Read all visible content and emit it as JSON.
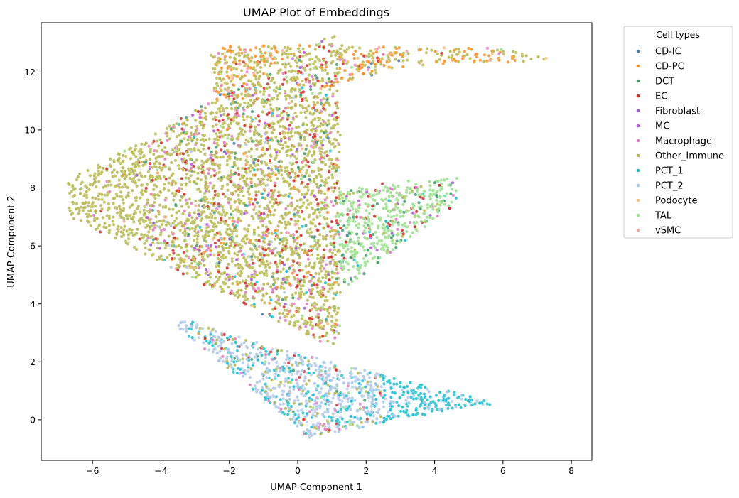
{
  "chart_data": {
    "type": "scatter",
    "title": "UMAP Plot of Embeddings",
    "xlabel": "UMAP Component 1",
    "ylabel": "UMAP Component 2",
    "xlim": [
      -7.5,
      8.6
    ],
    "ylim": [
      -1.4,
      13.7
    ],
    "xticks": [
      -6,
      -4,
      -2,
      0,
      2,
      4,
      6,
      8
    ],
    "yticks": [
      0,
      2,
      4,
      6,
      8,
      10,
      12
    ],
    "grid": false,
    "legend": {
      "title": "Cell types",
      "placement": "outside-upper-right"
    },
    "series": [
      {
        "name": "CD-IC",
        "color": "#4477b8",
        "approx_share": 0.01
      },
      {
        "name": "CD-PC",
        "color": "#ff8c1a",
        "approx_share": 0.03
      },
      {
        "name": "DCT",
        "color": "#3a9c6a",
        "approx_share": 0.06
      },
      {
        "name": "EC",
        "color": "#d62728",
        "approx_share": 0.08
      },
      {
        "name": "Fibroblast",
        "color": "#9b59d6",
        "approx_share": 0.02
      },
      {
        "name": "MC",
        "color": "#b94de8",
        "approx_share": 0.02
      },
      {
        "name": "Macrophage",
        "color": "#e377c2",
        "approx_share": 0.06
      },
      {
        "name": "Other_Immune",
        "color": "#b5b84a",
        "approx_share": 0.4
      },
      {
        "name": "PCT_1",
        "color": "#17becf",
        "approx_share": 0.06
      },
      {
        "name": "PCT_2",
        "color": "#aec7e8",
        "approx_share": 0.12
      },
      {
        "name": "Podocyte",
        "color": "#ffbb78",
        "approx_share": 0.01
      },
      {
        "name": "TAL",
        "color": "#98df8a",
        "approx_share": 0.12
      },
      {
        "name": "vSMC",
        "color": "#f0a29a",
        "approx_share": 0.01
      }
    ],
    "clusters": [
      {
        "name": "main-body",
        "region": "x -6.7..1.5, y 2.8..11",
        "dominant": "Other_Immune"
      },
      {
        "name": "upper-arm",
        "region": "x -2..8, y 10..13",
        "dominant": "CD-PC / Other_Immune"
      },
      {
        "name": "tal-wedge",
        "region": "x -1..4.8, y 3.5..8.5",
        "dominant": "TAL"
      },
      {
        "name": "lower-arm",
        "region": "x -3..5.8, y -0.7..3.5",
        "dominant": "PCT_2 / PCT_1"
      }
    ]
  }
}
